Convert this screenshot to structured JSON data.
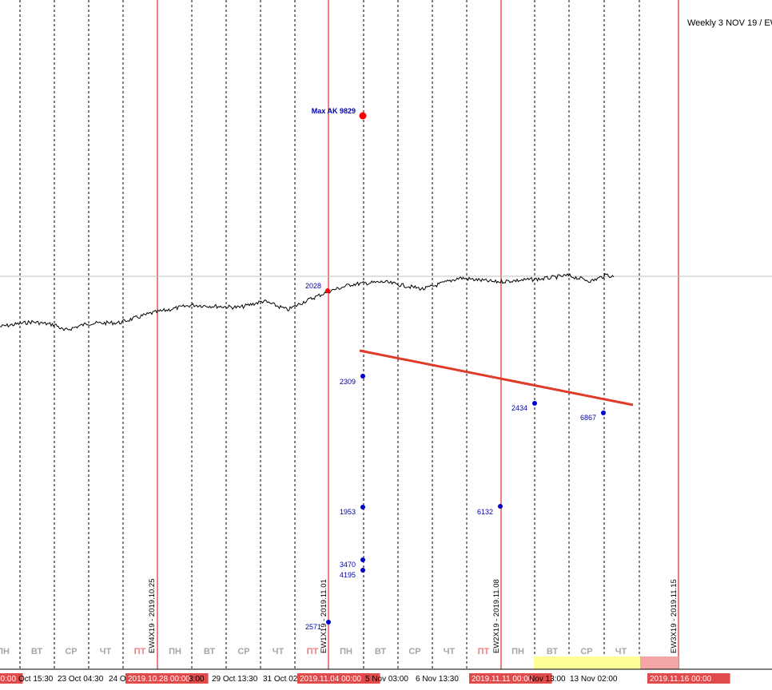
{
  "chart_data": {
    "type": "line",
    "title": "",
    "header_text": "Weekly 3 NOV 19 / EW",
    "day_labels": [
      {
        "text": "ПН",
        "color": "#a6a6a6"
      },
      {
        "text": "ВТ",
        "color": "#a6a6a6"
      },
      {
        "text": "СР",
        "color": "#a6a6a6"
      },
      {
        "text": "ЧТ",
        "color": "#a6a6a6"
      },
      {
        "text": "ПТ",
        "color": "#f08080"
      },
      {
        "text": "ПН",
        "color": "#a6a6a6"
      },
      {
        "text": "ВТ",
        "color": "#a6a6a6"
      },
      {
        "text": "СР",
        "color": "#a6a6a6"
      },
      {
        "text": "ЧТ",
        "color": "#a6a6a6"
      },
      {
        "text": "ПТ",
        "color": "#f08080"
      },
      {
        "text": "ПН",
        "color": "#a6a6a6"
      },
      {
        "text": "ВТ",
        "color": "#a6a6a6"
      },
      {
        "text": "СР",
        "color": "#a6a6a6"
      },
      {
        "text": "ЧТ",
        "color": "#a6a6a6"
      },
      {
        "text": "ПТ",
        "color": "#f08080"
      },
      {
        "text": "ПН",
        "color": "#a6a6a6"
      },
      {
        "text": "ВТ",
        "color": "#a6a6a6"
      },
      {
        "text": "СР",
        "color": "#a6a6a6"
      },
      {
        "text": "ЧТ",
        "color": "#a6a6a6"
      }
    ],
    "x_ticks": [
      {
        "text": "00:00",
        "highlight": true
      },
      {
        "text": "Oct 15:30",
        "highlight": false
      },
      {
        "text": "23 Oct 04:30",
        "highlight": false
      },
      {
        "text": "24 O",
        "highlight": false
      },
      {
        "text": "2019.10.28 00:00",
        "highlight": true
      },
      {
        "text": "3:00",
        "highlight": false
      },
      {
        "text": "29 Oct 13:30",
        "highlight": false
      },
      {
        "text": "31 Oct 02",
        "highlight": false
      },
      {
        "text": "2019.11.04 00:00",
        "highlight": true
      },
      {
        "text": "5 Nov 03:00",
        "highlight": false
      },
      {
        "text": "6 Nov 13:30",
        "highlight": false
      },
      {
        "text": "2019.11.11 00:00",
        "highlight": true
      },
      {
        "text": "Nov 13:00",
        "highlight": false
      },
      {
        "text": "13 Nov 02:00",
        "highlight": false
      },
      {
        "text": "2019.11.16 00:00",
        "highlight": true
      }
    ],
    "ew_labels": [
      "EW4X19 - 2019.10.25",
      "EW1X19 - 2019.11.01",
      "EW2X19 - 2019.11.08",
      "EW3X19 - 2019.11.15"
    ],
    "markers": [
      {
        "label": "Max AK 9829",
        "color": "#ff0000",
        "big": true
      },
      {
        "label": "2028",
        "color": "#ff0000",
        "big": false
      },
      {
        "label": "2309",
        "color": "#0000cc",
        "big": false
      },
      {
        "label": "2434",
        "color": "#0000cc",
        "big": false
      },
      {
        "label": "6867",
        "color": "#0000cc",
        "big": false
      },
      {
        "label": "1953",
        "color": "#0000cc",
        "big": false
      },
      {
        "label": "6132",
        "color": "#0000cc",
        "big": false
      },
      {
        "label": "3470",
        "color": "#0000cc",
        "big": false
      },
      {
        "label": "4195",
        "color": "#0000cc",
        "big": false
      },
      {
        "label": "2571",
        "color": "#0000cc",
        "big": false
      }
    ],
    "colors": {
      "price_line": "#000000",
      "week_line": "#cc0000",
      "trend_line": "#e03a2a",
      "tick_highlight_bg": "#e04a4a",
      "yellow_band": "#ffff99",
      "pink_band": "#f4a6a6"
    }
  }
}
